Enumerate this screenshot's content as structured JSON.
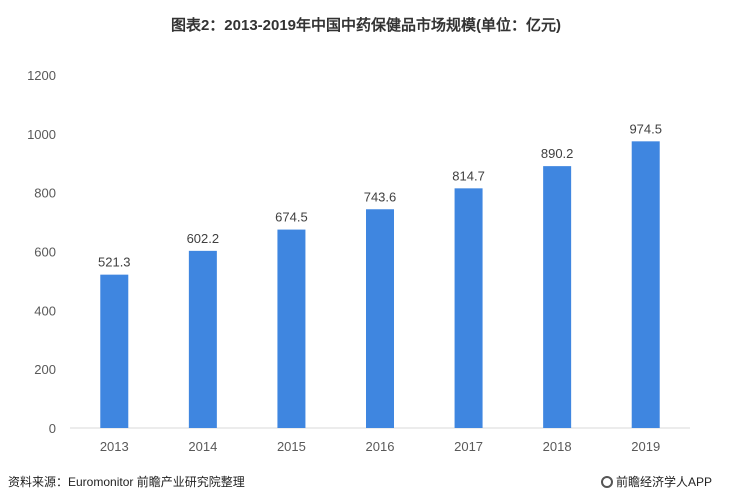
{
  "title": "图表2：2013-2019年中国中药保健品市场规模(单位：亿元)",
  "source": "资料来源：Euromonitor 前瞻产业研究院整理",
  "brand": "前瞻经济学人APP",
  "colors": {
    "bar": "#3f86e0",
    "axis": "#d9d9d9",
    "tick_text": "#595959",
    "label_text": "#404040"
  },
  "chart_data": {
    "type": "bar",
    "categories": [
      "2013",
      "2014",
      "2015",
      "2016",
      "2017",
      "2018",
      "2019"
    ],
    "values": [
      521.3,
      602.2,
      674.5,
      743.6,
      814.7,
      890.2,
      974.5
    ],
    "value_labels": [
      "521.3",
      "602.2",
      "674.5",
      "743.6",
      "814.7",
      "890.2",
      "974.5"
    ],
    "yticks": [
      "0",
      "200",
      "400",
      "600",
      "800",
      "1000",
      "1200"
    ],
    "ylim": [
      0,
      1200
    ],
    "grid": false,
    "legend": "none"
  }
}
